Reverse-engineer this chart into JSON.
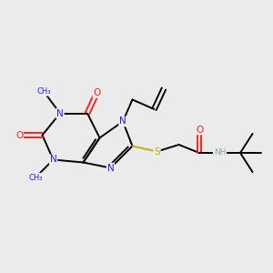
{
  "background_color": "#ebebeb",
  "atom_colors": {
    "N": "#2020ff",
    "O": "#ff2020",
    "S": "#ccaa00",
    "C": "#000000",
    "H": "#88aaaa"
  },
  "bond_color": "#000000",
  "bond_lw": 1.4,
  "figsize": [
    3.0,
    3.0
  ],
  "dpi": 100,
  "xlim": [
    0,
    10
  ],
  "ylim": [
    0,
    10
  ]
}
